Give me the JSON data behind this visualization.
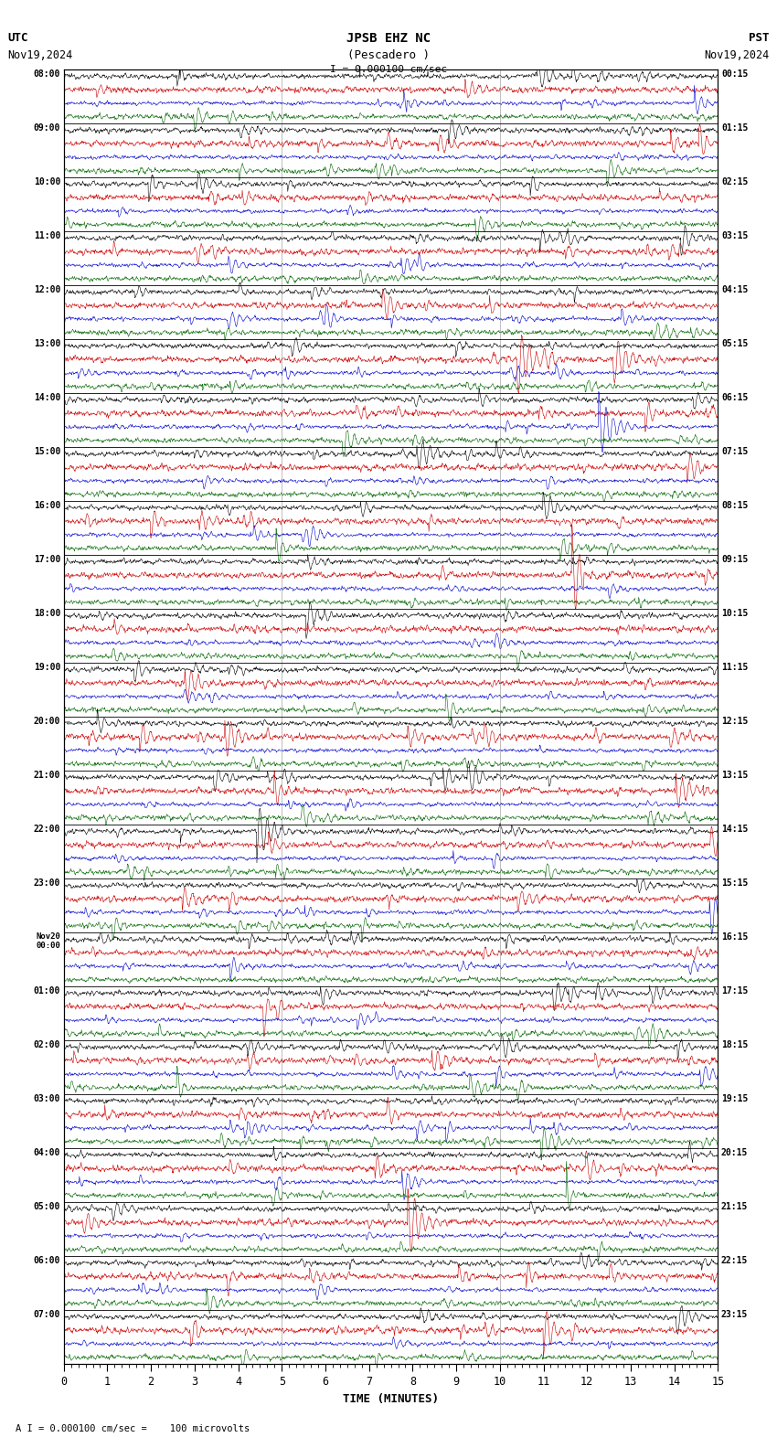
{
  "title_line1": "JPSB EHZ NC",
  "title_line2": "(Pescadero )",
  "scale_text": "I = 0.000100 cm/sec",
  "footer_text": "A I = 0.000100 cm/sec =    100 microvolts",
  "utc_label": "UTC",
  "utc_date": "Nov19,2024",
  "pst_label": "PST",
  "pst_date": "Nov19,2024",
  "xlabel": "TIME (MINUTES)",
  "background_color": "#ffffff",
  "trace_colors": [
    "#000000",
    "#cc0000",
    "#0000cc",
    "#006600"
  ],
  "num_hour_blocks": 24,
  "traces_per_block": 4,
  "xmin": 0,
  "xmax": 15,
  "left_times": [
    "08:00",
    "09:00",
    "10:00",
    "11:00",
    "12:00",
    "13:00",
    "14:00",
    "15:00",
    "16:00",
    "17:00",
    "18:00",
    "19:00",
    "20:00",
    "21:00",
    "22:00",
    "23:00",
    "Nov20\n00:00",
    "01:00",
    "02:00",
    "03:00",
    "04:00",
    "05:00",
    "06:00",
    "07:00"
  ],
  "right_times": [
    "00:15",
    "01:15",
    "02:15",
    "03:15",
    "04:15",
    "05:15",
    "06:15",
    "07:15",
    "08:15",
    "09:15",
    "10:15",
    "11:15",
    "12:15",
    "13:15",
    "14:15",
    "15:15",
    "16:15",
    "17:15",
    "18:15",
    "19:15",
    "20:15",
    "21:15",
    "22:15",
    "23:15"
  ],
  "noise_base": 0.25,
  "event_probability": 0.004,
  "event_amplitude_base": 1.8,
  "vertical_grid_minutes": [
    5,
    10
  ]
}
